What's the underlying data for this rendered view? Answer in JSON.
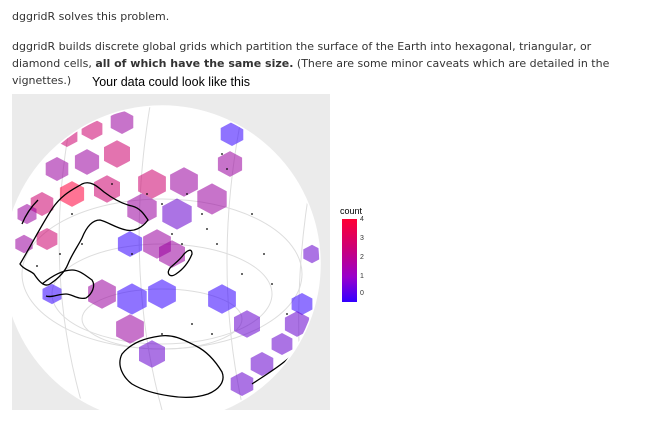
{
  "text": {
    "p1": "dggridR solves this problem.",
    "p2_start": "dggridR builds discrete global grids which partition the surface of the Earth into hexagonal, triangular, or diamond cells, ",
    "p2_bold": "all of which have the same size.",
    "p2_end": " (There are some minor caveats which are detailed in the vignettes.)"
  },
  "figure": {
    "title": "Your data could look like this",
    "legend_title": "count",
    "legend_ticks": [
      "4",
      "3",
      "2",
      "1",
      "0"
    ],
    "colors": {
      "panel": "#ebebeb",
      "high": "#ff0033",
      "low": "#3300ff",
      "coast": "#000000",
      "grid": "#ffffff"
    }
  },
  "chart_data": {
    "type": "heatmap",
    "title": "Your data could look like this",
    "legend": {
      "title": "count",
      "ticks": [
        0,
        1,
        2,
        3,
        4
      ],
      "range": [
        0,
        4
      ]
    },
    "cells_count": [
      3,
      3,
      2,
      2,
      2,
      3,
      3,
      4,
      3,
      3,
      2,
      2,
      2,
      1,
      0,
      2,
      2,
      0,
      2,
      2,
      0,
      0,
      2,
      1,
      0,
      0,
      1,
      0,
      1,
      1,
      2,
      2,
      3,
      1,
      1,
      1
    ]
  }
}
